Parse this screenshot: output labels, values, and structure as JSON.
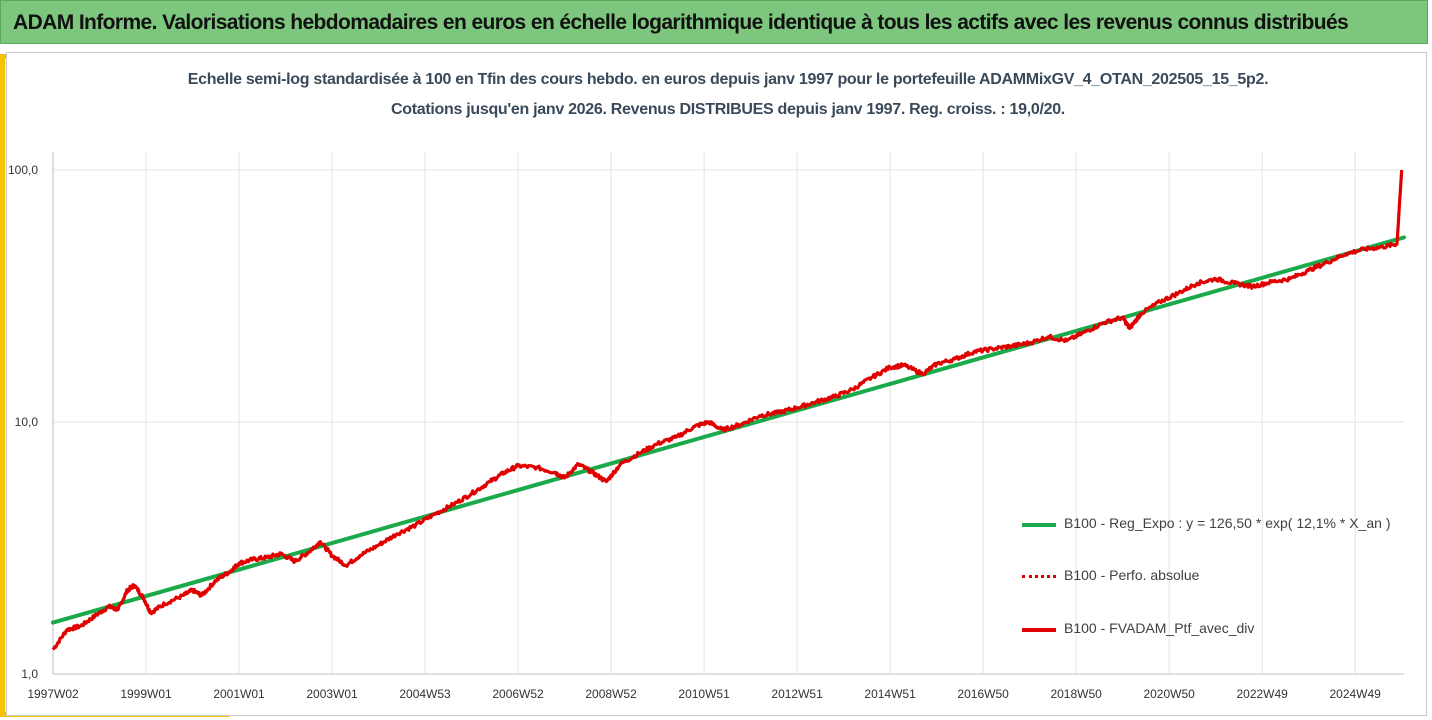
{
  "header": {
    "title": "ADAM Informe. Valorisations hebdomadaires en euros en échelle logarithmique identique à tous les actifs avec les revenus connus distribués"
  },
  "chart_data": {
    "type": "line",
    "subtitle_line1": "Echelle semi-log standardisée  à 100 en Tfin des cours hebdo.  en euros depuis janv 1997 pour le portefeuille ADAMMixGV_4_OTAN_202505_15_5p2.",
    "subtitle_line2": "Cotations  jusqu'en janv 2026. Revenus DISTRIBUES depuis janv 1997. Reg. croiss. : 19,0/20.",
    "y_scale": "log",
    "ylim": [
      1,
      100
    ],
    "y_ticks": [
      {
        "value": 1,
        "label": "1,0"
      },
      {
        "value": 10,
        "label": "10,0"
      },
      {
        "value": 100,
        "label": "100,0"
      }
    ],
    "xlim": [
      1997.0,
      2026.05
    ],
    "x_ticks": [
      {
        "value": 1997.0,
        "label": "1997W02"
      },
      {
        "value": 1999.0,
        "label": "1999W01"
      },
      {
        "value": 2001.0,
        "label": "2001W01"
      },
      {
        "value": 2003.0,
        "label": "2003W01"
      },
      {
        "value": 2005.0,
        "label": "2004W53"
      },
      {
        "value": 2007.0,
        "label": "2006W52"
      },
      {
        "value": 2009.0,
        "label": "2008W52"
      },
      {
        "value": 2011.0,
        "label": "2010W51"
      },
      {
        "value": 2013.0,
        "label": "2012W51"
      },
      {
        "value": 2015.0,
        "label": "2014W51"
      },
      {
        "value": 2017.0,
        "label": "2016W50"
      },
      {
        "value": 2019.0,
        "label": "2018W50"
      },
      {
        "value": 2021.0,
        "label": "2020W50"
      },
      {
        "value": 2023.0,
        "label": "2022W49"
      },
      {
        "value": 2025.0,
        "label": "2024W49"
      }
    ],
    "grid": {
      "vertical": true,
      "horizontal": true
    },
    "legend_position": "right",
    "series": [
      {
        "name": "B100 - Reg_Expo : y = 126,50 * exp( 12,1% *  X_an )",
        "color": "#1aaa4a",
        "style": "solid",
        "points": [
          [
            1997.0,
            1.6
          ],
          [
            2026.05,
            54.0
          ]
        ]
      },
      {
        "name": "B100 - Perfo. absolue",
        "color": "#e00000",
        "style": "dotted",
        "points": []
      },
      {
        "name": "B100 - FVADAM_Ptf_avec_div",
        "color": "#e00000",
        "style": "solid",
        "points": [
          [
            1997.0,
            1.25
          ],
          [
            1997.3,
            1.5
          ],
          [
            1997.6,
            1.55
          ],
          [
            1997.9,
            1.7
          ],
          [
            1998.2,
            1.85
          ],
          [
            1998.4,
            1.8
          ],
          [
            1998.6,
            2.15
          ],
          [
            1998.75,
            2.25
          ],
          [
            1998.95,
            2.0
          ],
          [
            1999.1,
            1.75
          ],
          [
            1999.4,
            1.9
          ],
          [
            1999.8,
            2.05
          ],
          [
            2000.0,
            2.15
          ],
          [
            2000.2,
            2.05
          ],
          [
            2000.5,
            2.35
          ],
          [
            2000.8,
            2.55
          ],
          [
            2001.0,
            2.75
          ],
          [
            2001.3,
            2.85
          ],
          [
            2001.6,
            2.9
          ],
          [
            2001.9,
            3.0
          ],
          [
            2002.2,
            2.8
          ],
          [
            2002.5,
            3.05
          ],
          [
            2002.75,
            3.35
          ],
          [
            2003.0,
            2.95
          ],
          [
            2003.3,
            2.7
          ],
          [
            2003.6,
            2.95
          ],
          [
            2004.0,
            3.25
          ],
          [
            2004.4,
            3.6
          ],
          [
            2004.8,
            3.9
          ],
          [
            2005.2,
            4.3
          ],
          [
            2005.6,
            4.7
          ],
          [
            2006.0,
            5.2
          ],
          [
            2006.4,
            5.8
          ],
          [
            2006.7,
            6.3
          ],
          [
            2007.0,
            6.7
          ],
          [
            2007.4,
            6.6
          ],
          [
            2007.8,
            6.3
          ],
          [
            2008.0,
            6.0
          ],
          [
            2008.3,
            6.8
          ],
          [
            2008.6,
            6.3
          ],
          [
            2008.9,
            5.8
          ],
          [
            2009.2,
            6.8
          ],
          [
            2009.6,
            7.5
          ],
          [
            2010.0,
            8.2
          ],
          [
            2010.4,
            8.7
          ],
          [
            2010.8,
            9.6
          ],
          [
            2011.1,
            10.0
          ],
          [
            2011.4,
            9.3
          ],
          [
            2011.8,
            9.8
          ],
          [
            2012.2,
            10.6
          ],
          [
            2012.6,
            10.9
          ],
          [
            2013.0,
            11.4
          ],
          [
            2013.4,
            12.0
          ],
          [
            2013.8,
            12.6
          ],
          [
            2014.2,
            13.5
          ],
          [
            2014.6,
            15.0
          ],
          [
            2015.0,
            16.5
          ],
          [
            2015.3,
            16.8
          ],
          [
            2015.7,
            15.5
          ],
          [
            2016.0,
            17.0
          ],
          [
            2016.4,
            17.8
          ],
          [
            2016.8,
            19.0
          ],
          [
            2017.2,
            19.5
          ],
          [
            2017.6,
            20.0
          ],
          [
            2018.0,
            20.6
          ],
          [
            2018.4,
            21.8
          ],
          [
            2018.8,
            21.0
          ],
          [
            2019.2,
            22.8
          ],
          [
            2019.6,
            24.8
          ],
          [
            2020.0,
            26.0
          ],
          [
            2020.15,
            23.5
          ],
          [
            2020.4,
            27.0
          ],
          [
            2020.8,
            30.0
          ],
          [
            2021.2,
            32.5
          ],
          [
            2021.6,
            35.5
          ],
          [
            2022.0,
            37.0
          ],
          [
            2022.4,
            35.5
          ],
          [
            2022.8,
            34.5
          ],
          [
            2023.2,
            36.0
          ],
          [
            2023.6,
            37.0
          ],
          [
            2024.0,
            40.0
          ],
          [
            2024.4,
            43.0
          ],
          [
            2024.8,
            46.5
          ],
          [
            2025.2,
            48.5
          ],
          [
            2025.6,
            49.5
          ],
          [
            2025.9,
            51.0
          ],
          [
            2026.0,
            100.0
          ]
        ]
      }
    ]
  }
}
